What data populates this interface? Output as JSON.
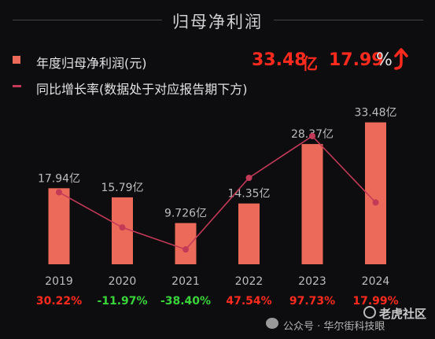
{
  "title": "归母净利润",
  "legend": {
    "bar_label": "年度归母净利润(元)",
    "line_label": "同比增长率(数据处于对应报告期下方)"
  },
  "headline": {
    "value": "33.48",
    "unit": "亿",
    "growth": "17.99",
    "percent_sign": "%",
    "trend_icon": "up-arrow-icon"
  },
  "colors": {
    "bar": "#ec6a5a",
    "line": "#c23a57",
    "positive": "#ff2a1e",
    "negative": "#3ad33a",
    "headline": "#ff2a1e"
  },
  "chart_data": {
    "type": "bar",
    "categories": [
      "2019",
      "2020",
      "2021",
      "2022",
      "2023",
      "2024"
    ],
    "series": [
      {
        "name": "年度归母净利润(元)",
        "type": "bar",
        "values": [
          17.94,
          15.79,
          9.726,
          14.35,
          28.37,
          33.48
        ],
        "labels": [
          "17.94亿",
          "15.79亿",
          "9.726亿",
          "14.35亿",
          "28.37亿",
          "33.48亿"
        ]
      },
      {
        "name": "同比增长率(数据处于对应报告期下方)",
        "type": "line",
        "values": [
          30.22,
          -11.97,
          -38.4,
          47.54,
          97.73,
          17.99
        ],
        "labels": [
          "30.22%",
          "-11.97%",
          "-38.40%",
          "47.54%",
          "97.73%",
          "17.99%"
        ]
      }
    ],
    "ylim": [
      0,
      36
    ],
    "y2lim": [
      -60,
      110
    ],
    "grid": false,
    "legend_position": "top-left"
  },
  "watermark": {
    "site": "老虎社区",
    "account": "公众号 · 华尔街科技眼"
  }
}
